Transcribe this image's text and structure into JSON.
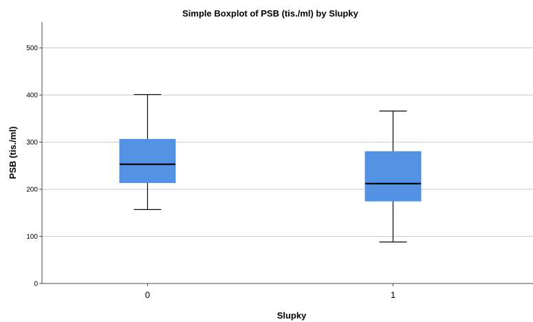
{
  "chart_data": {
    "type": "boxplot",
    "title": "Simple Boxplot of PSB (tis./ml) by Slupky",
    "xlabel": "Slupky",
    "ylabel": "PSB (tis./ml)",
    "categories": [
      "0",
      "1"
    ],
    "yticks": [
      0,
      100,
      200,
      300,
      400,
      500
    ],
    "ylim": [
      0,
      555
    ],
    "grid": true,
    "box_color": "#5392e3",
    "boxes": [
      {
        "category": "0",
        "min": 157,
        "q1": 214,
        "median": 253,
        "q3": 306,
        "max": 401
      },
      {
        "category": "1",
        "min": 88,
        "q1": 175,
        "median": 212,
        "q3": 280,
        "max": 366
      }
    ]
  }
}
